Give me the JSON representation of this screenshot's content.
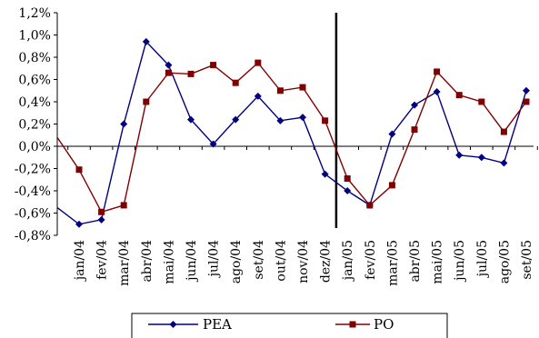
{
  "chart_data": {
    "type": "line",
    "categories": [
      "jan/04",
      "fev/04",
      "mar/04",
      "abr/04",
      "mai/04",
      "jun/04",
      "jul/04",
      "ago/04",
      "set/04",
      "out/04",
      "nov/04",
      "dez/04",
      "jan/05",
      "fev/05",
      "mar/05",
      "abr/05",
      "mai/05",
      "jun/05",
      "jul/05",
      "ago/05",
      "set/05"
    ],
    "series": [
      {
        "name": "PEA",
        "color": "#000080",
        "marker": "diamond",
        "start_value": -0.52,
        "values": [
          -0.7,
          -0.66,
          0.2,
          0.94,
          0.73,
          0.24,
          0.02,
          0.24,
          0.45,
          0.23,
          0.26,
          -0.25,
          -0.4,
          -0.53,
          0.11,
          0.37,
          0.49,
          -0.08,
          -0.1,
          -0.15,
          0.5
        ]
      },
      {
        "name": "PO",
        "color": "#800000",
        "marker": "square",
        "start_value": 0.14,
        "values": [
          -0.21,
          -0.59,
          -0.53,
          0.4,
          0.66,
          0.65,
          0.73,
          0.57,
          0.75,
          0.5,
          0.53,
          0.23,
          -0.29,
          -0.53,
          -0.35,
          0.15,
          0.67,
          0.46,
          0.4,
          0.13,
          0.4
        ]
      }
    ],
    "ylim": [
      -0.8,
      1.2
    ],
    "ytick_step": 0.2,
    "ytick_labels": [
      "-0,8%",
      "-0,6%",
      "-0,4%",
      "-0,2%",
      "0,0%",
      "0,2%",
      "0,4%",
      "0,6%",
      "0,8%",
      "1,0%",
      "1,2%"
    ],
    "divider_after_category": "dez/04",
    "grid": false,
    "legend_position": "bottom"
  }
}
